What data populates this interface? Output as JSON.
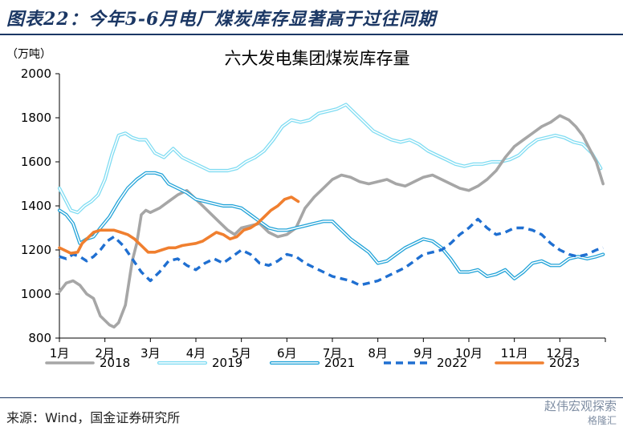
{
  "figure_title": "图表22：今年5-6月电厂煤炭库存显著高于过往同期",
  "source": "来源：Wind，国金证券研究所",
  "watermark": {
    "line1": "赵伟宏观探索",
    "line2": "格隆汇"
  },
  "colors": {
    "title_blue": "#1b3764",
    "s2018": "#a6a6a6",
    "s2019": "#7fdcf2",
    "s2021": "#22a3d8",
    "s2022": "#1f6fd1",
    "s2023": "#f07f2f"
  },
  "chart_data": {
    "type": "line",
    "title": "六大发电集团煤炭库存量",
    "unit": "（万吨）",
    "xlabel": "",
    "ylabel": "",
    "ylim": [
      800,
      2000
    ],
    "yticks": [
      800,
      1000,
      1200,
      1400,
      1600,
      1800,
      2000
    ],
    "xlim": [
      1,
      13
    ],
    "xtick_labels": [
      "1月",
      "2月",
      "3月",
      "4月",
      "5月",
      "6月",
      "7月",
      "8月",
      "9月",
      "10月",
      "11月",
      "12月"
    ],
    "xtick_positions": [
      1,
      2,
      3,
      4,
      5,
      6,
      7,
      8,
      9,
      10,
      11,
      12
    ],
    "grid": false,
    "legend": "bottom",
    "series": [
      {
        "name": "2018",
        "style": "solid-thick",
        "color": "#a6a6a6",
        "x": [
          1.0,
          1.15,
          1.3,
          1.45,
          1.6,
          1.75,
          1.9,
          2.0,
          2.1,
          2.2,
          2.3,
          2.45,
          2.6,
          2.7,
          2.8,
          2.9,
          3.0,
          3.2,
          3.4,
          3.6,
          3.8,
          4.0,
          4.15,
          4.3,
          4.5,
          4.7,
          4.85,
          5.0,
          5.2,
          5.4,
          5.6,
          5.8,
          6.0,
          6.2,
          6.4,
          6.6,
          6.8,
          7.0,
          7.2,
          7.4,
          7.6,
          7.8,
          8.0,
          8.2,
          8.4,
          8.6,
          8.8,
          9.0,
          9.2,
          9.4,
          9.6,
          9.8,
          10.0,
          10.2,
          10.4,
          10.6,
          10.8,
          11.0,
          11.2,
          11.4,
          11.6,
          11.8,
          12.0,
          12.1,
          12.2,
          12.35,
          12.5,
          12.65,
          12.8,
          12.95
        ],
        "values": [
          1010,
          1050,
          1060,
          1040,
          1000,
          980,
          900,
          880,
          860,
          850,
          870,
          950,
          1150,
          1230,
          1360,
          1380,
          1370,
          1390,
          1420,
          1450,
          1470,
          1430,
          1400,
          1370,
          1330,
          1290,
          1270,
          1300,
          1310,
          1320,
          1280,
          1260,
          1270,
          1300,
          1390,
          1440,
          1480,
          1520,
          1540,
          1530,
          1510,
          1500,
          1510,
          1520,
          1500,
          1490,
          1510,
          1530,
          1540,
          1520,
          1500,
          1480,
          1470,
          1490,
          1520,
          1560,
          1620,
          1670,
          1700,
          1730,
          1760,
          1780,
          1810,
          1800,
          1790,
          1760,
          1720,
          1660,
          1600,
          1500
        ]
      },
      {
        "name": "2019",
        "style": "double",
        "color": "#7fdcf2",
        "x": [
          1.0,
          1.1,
          1.25,
          1.4,
          1.55,
          1.7,
          1.85,
          2.0,
          2.15,
          2.3,
          2.45,
          2.6,
          2.75,
          2.9,
          3.1,
          3.3,
          3.5,
          3.7,
          3.9,
          4.1,
          4.3,
          4.5,
          4.7,
          4.9,
          5.1,
          5.3,
          5.5,
          5.7,
          5.9,
          6.1,
          6.3,
          6.5,
          6.7,
          6.9,
          7.1,
          7.3,
          7.5,
          7.7,
          7.9,
          8.1,
          8.3,
          8.5,
          8.7,
          8.9,
          9.1,
          9.3,
          9.5,
          9.7,
          9.9,
          10.1,
          10.3,
          10.5,
          10.7,
          10.9,
          11.1,
          11.3,
          11.5,
          11.7,
          11.9,
          12.1,
          12.3,
          12.5,
          12.7,
          12.9
        ],
        "values": [
          1480,
          1440,
          1380,
          1370,
          1400,
          1420,
          1450,
          1520,
          1630,
          1720,
          1730,
          1710,
          1700,
          1700,
          1640,
          1620,
          1660,
          1620,
          1600,
          1580,
          1560,
          1560,
          1560,
          1570,
          1600,
          1620,
          1650,
          1700,
          1760,
          1790,
          1780,
          1790,
          1820,
          1830,
          1840,
          1860,
          1820,
          1780,
          1740,
          1720,
          1700,
          1690,
          1700,
          1680,
          1650,
          1630,
          1610,
          1590,
          1580,
          1590,
          1590,
          1600,
          1600,
          1610,
          1630,
          1670,
          1700,
          1710,
          1720,
          1710,
          1690,
          1680,
          1640,
          1570
        ]
      },
      {
        "name": "2021",
        "style": "double",
        "color": "#22a3d8",
        "x": [
          1.0,
          1.15,
          1.3,
          1.45,
          1.6,
          1.75,
          1.9,
          2.1,
          2.3,
          2.5,
          2.7,
          2.9,
          3.1,
          3.25,
          3.4,
          3.6,
          3.8,
          4.0,
          4.2,
          4.4,
          4.6,
          4.8,
          5.0,
          5.2,
          5.4,
          5.6,
          5.8,
          6.0,
          6.2,
          6.4,
          6.6,
          6.8,
          7.0,
          7.2,
          7.4,
          7.6,
          7.8,
          8.0,
          8.2,
          8.4,
          8.6,
          8.8,
          9.0,
          9.2,
          9.4,
          9.6,
          9.8,
          10.0,
          10.2,
          10.4,
          10.6,
          10.8,
          11.0,
          11.2,
          11.4,
          11.6,
          11.8,
          12.0,
          12.2,
          12.4,
          12.6,
          12.8,
          12.95
        ],
        "values": [
          1380,
          1360,
          1320,
          1230,
          1250,
          1260,
          1300,
          1350,
          1420,
          1480,
          1520,
          1550,
          1550,
          1540,
          1500,
          1480,
          1460,
          1430,
          1420,
          1410,
          1400,
          1400,
          1390,
          1360,
          1330,
          1300,
          1290,
          1290,
          1300,
          1310,
          1320,
          1330,
          1330,
          1290,
          1250,
          1220,
          1190,
          1140,
          1150,
          1180,
          1210,
          1230,
          1250,
          1240,
          1210,
          1160,
          1100,
          1100,
          1110,
          1080,
          1090,
          1110,
          1070,
          1100,
          1140,
          1150,
          1130,
          1130,
          1160,
          1170,
          1160,
          1170,
          1180
        ]
      },
      {
        "name": "2022",
        "style": "dashed",
        "color": "#1f6fd1",
        "x": [
          1.0,
          1.15,
          1.3,
          1.45,
          1.6,
          1.75,
          1.9,
          2.05,
          2.2,
          2.4,
          2.6,
          2.8,
          3.0,
          3.2,
          3.4,
          3.6,
          3.8,
          4.0,
          4.2,
          4.4,
          4.6,
          4.8,
          5.0,
          5.2,
          5.4,
          5.6,
          5.8,
          6.0,
          6.2,
          6.4,
          6.6,
          6.8,
          7.0,
          7.2,
          7.4,
          7.6,
          7.8,
          8.0,
          8.2,
          8.4,
          8.6,
          8.8,
          9.0,
          9.2,
          9.4,
          9.6,
          9.8,
          10.0,
          10.2,
          10.4,
          10.6,
          10.8,
          11.0,
          11.2,
          11.4,
          11.6,
          11.8,
          12.0,
          12.2,
          12.4,
          12.6,
          12.8,
          12.95
        ],
        "values": [
          1170,
          1160,
          1180,
          1170,
          1150,
          1170,
          1200,
          1240,
          1260,
          1220,
          1160,
          1100,
          1060,
          1100,
          1150,
          1160,
          1130,
          1110,
          1140,
          1160,
          1140,
          1170,
          1200,
          1180,
          1140,
          1130,
          1150,
          1180,
          1170,
          1140,
          1120,
          1100,
          1080,
          1070,
          1060,
          1040,
          1050,
          1060,
          1080,
          1100,
          1120,
          1150,
          1180,
          1190,
          1200,
          1230,
          1270,
          1300,
          1340,
          1300,
          1270,
          1280,
          1300,
          1300,
          1290,
          1270,
          1230,
          1200,
          1180,
          1170,
          1180,
          1200,
          1210
        ]
      },
      {
        "name": "2023",
        "style": "solid-thick",
        "color": "#f07f2f",
        "x": [
          1.0,
          1.1,
          1.25,
          1.4,
          1.5,
          1.6,
          1.75,
          1.9,
          2.05,
          2.2,
          2.35,
          2.5,
          2.65,
          2.8,
          2.95,
          3.1,
          3.25,
          3.4,
          3.55,
          3.7,
          3.85,
          4.0,
          4.15,
          4.3,
          4.45,
          4.6,
          4.75,
          4.9,
          5.05,
          5.2,
          5.35,
          5.5,
          5.65,
          5.8,
          5.95,
          6.1,
          6.25
        ],
        "values": [
          1210,
          1200,
          1185,
          1190,
          1230,
          1250,
          1280,
          1290,
          1290,
          1290,
          1280,
          1270,
          1250,
          1220,
          1190,
          1190,
          1200,
          1210,
          1210,
          1220,
          1225,
          1230,
          1240,
          1260,
          1280,
          1270,
          1250,
          1260,
          1290,
          1300,
          1320,
          1350,
          1380,
          1400,
          1430,
          1440,
          1420
        ]
      }
    ]
  }
}
